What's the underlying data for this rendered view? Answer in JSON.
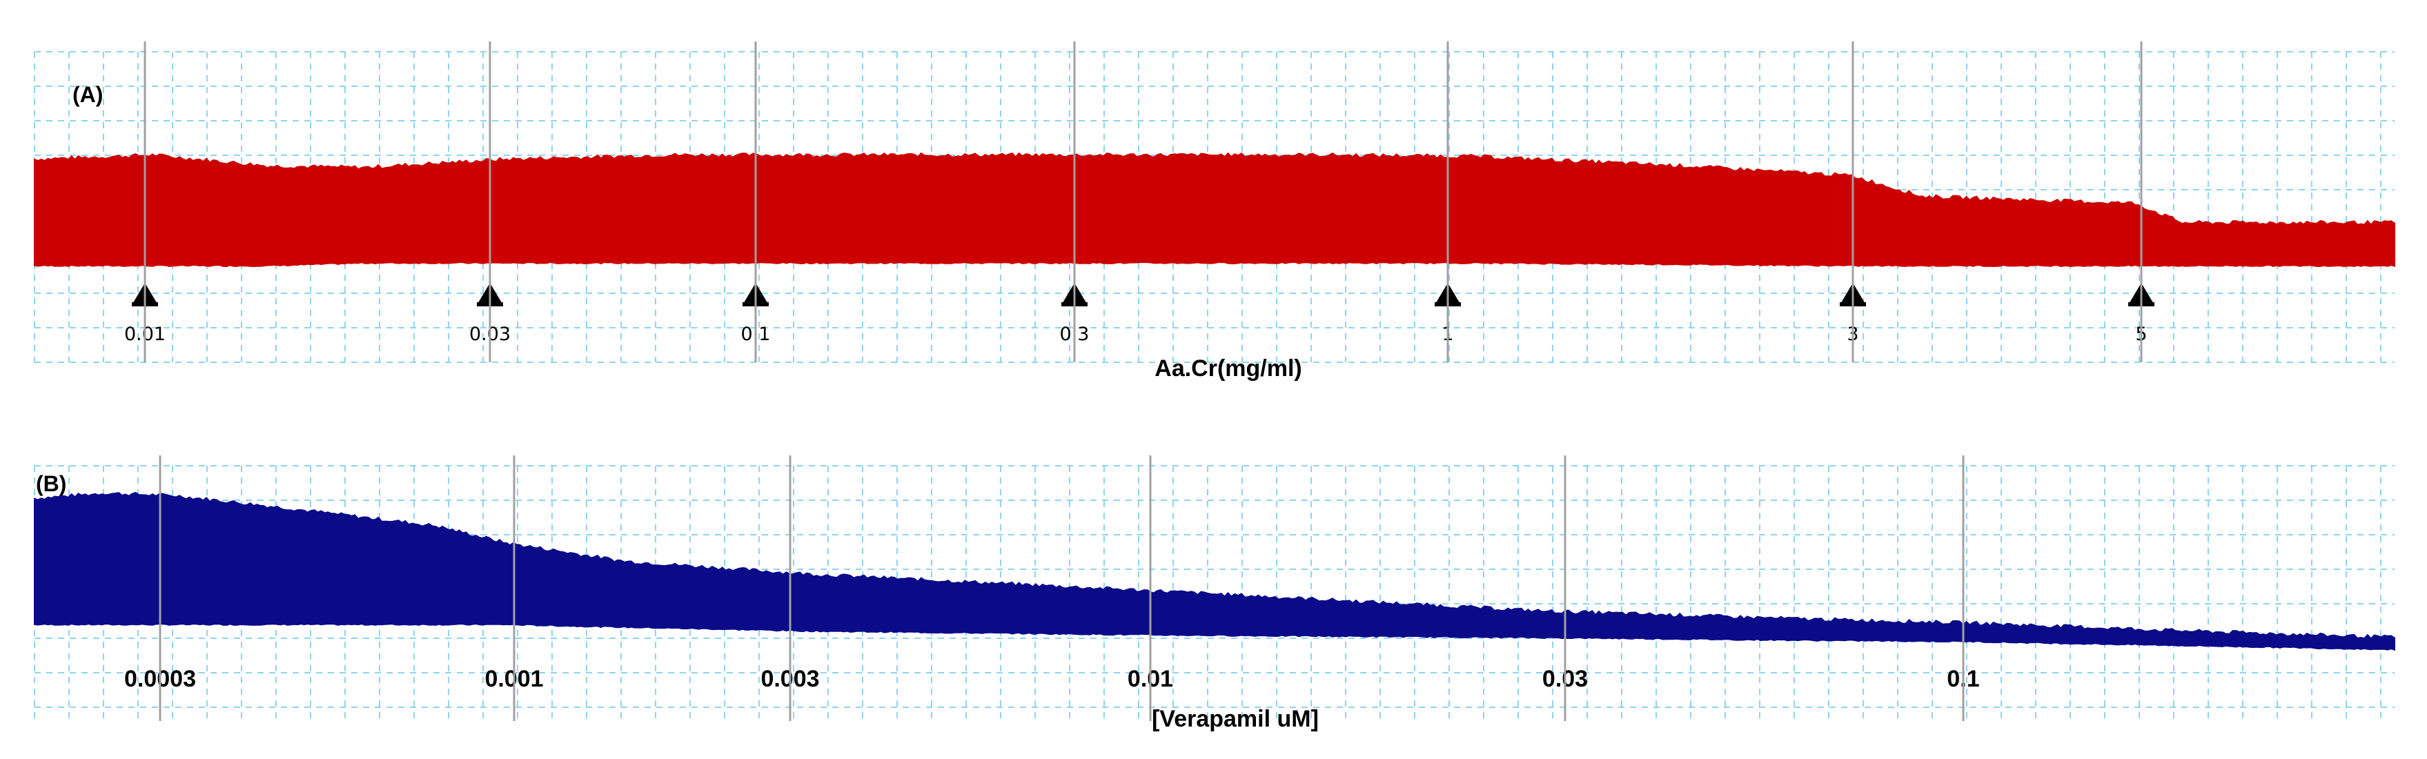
{
  "chart_data": [
    {
      "type": "area",
      "panel_label": "(A)",
      "xlabel": "Aa.Cr(mg/ml)",
      "ylabel": "",
      "grid": true,
      "trace_color": "#cc0000",
      "marker": "triangle-up",
      "doses": [
        {
          "label": "0.01",
          "value": 0.01
        },
        {
          "label": "0.03",
          "value": 0.03
        },
        {
          "label": "0.1",
          "value": 0.1
        },
        {
          "label": "0.3",
          "value": 0.3
        },
        {
          "label": "1",
          "value": 1
        },
        {
          "label": "3",
          "value": 3
        },
        {
          "label": "5",
          "value": 5
        }
      ],
      "amplitude_profile": {
        "x": [
          0,
          0.05,
          0.1,
          0.14,
          0.2,
          0.27,
          0.35,
          0.45,
          0.55,
          0.61,
          0.7,
          0.77,
          0.8,
          0.89,
          0.91,
          1.0
        ],
        "top": [
          0.77,
          0.8,
          0.72,
          0.71,
          0.77,
          0.8,
          0.8,
          0.8,
          0.8,
          0.79,
          0.72,
          0.65,
          0.5,
          0.45,
          0.31,
          0.31
        ],
        "bottom": [
          0.0,
          0.0,
          0.0,
          0.02,
          0.02,
          0.02,
          0.02,
          0.02,
          0.02,
          0.02,
          0.01,
          0.0,
          0.0,
          0.0,
          0.0,
          0.0
        ]
      }
    },
    {
      "type": "area",
      "panel_label": "(B)",
      "xlabel": "[Verapamil uM]",
      "ylabel": "",
      "grid": true,
      "trace_color": "#0b0b8a",
      "doses": [
        {
          "label": "0.0003",
          "value": 0.0003
        },
        {
          "label": "0.001",
          "value": 0.001
        },
        {
          "label": "0.003",
          "value": 0.003
        },
        {
          "label": "0.01",
          "value": 0.01
        },
        {
          "label": "0.03",
          "value": 0.03
        },
        {
          "label": "0.1",
          "value": 0.1
        }
      ],
      "amplitude_profile": {
        "x": [
          0,
          0.03,
          0.06,
          0.1,
          0.17,
          0.2,
          0.25,
          0.33,
          0.48,
          0.64,
          0.75,
          0.82,
          0.91,
          1.0
        ],
        "top": [
          0.96,
          1.0,
          0.98,
          0.9,
          0.75,
          0.62,
          0.48,
          0.38,
          0.25,
          0.1,
          0.04,
          0.01,
          -0.05,
          -0.1
        ],
        "bottom": [
          0.0,
          0.0,
          0.0,
          0.0,
          0.0,
          0.0,
          -0.02,
          -0.05,
          -0.08,
          -0.1,
          -0.12,
          -0.13,
          -0.16,
          -0.19
        ]
      }
    }
  ]
}
